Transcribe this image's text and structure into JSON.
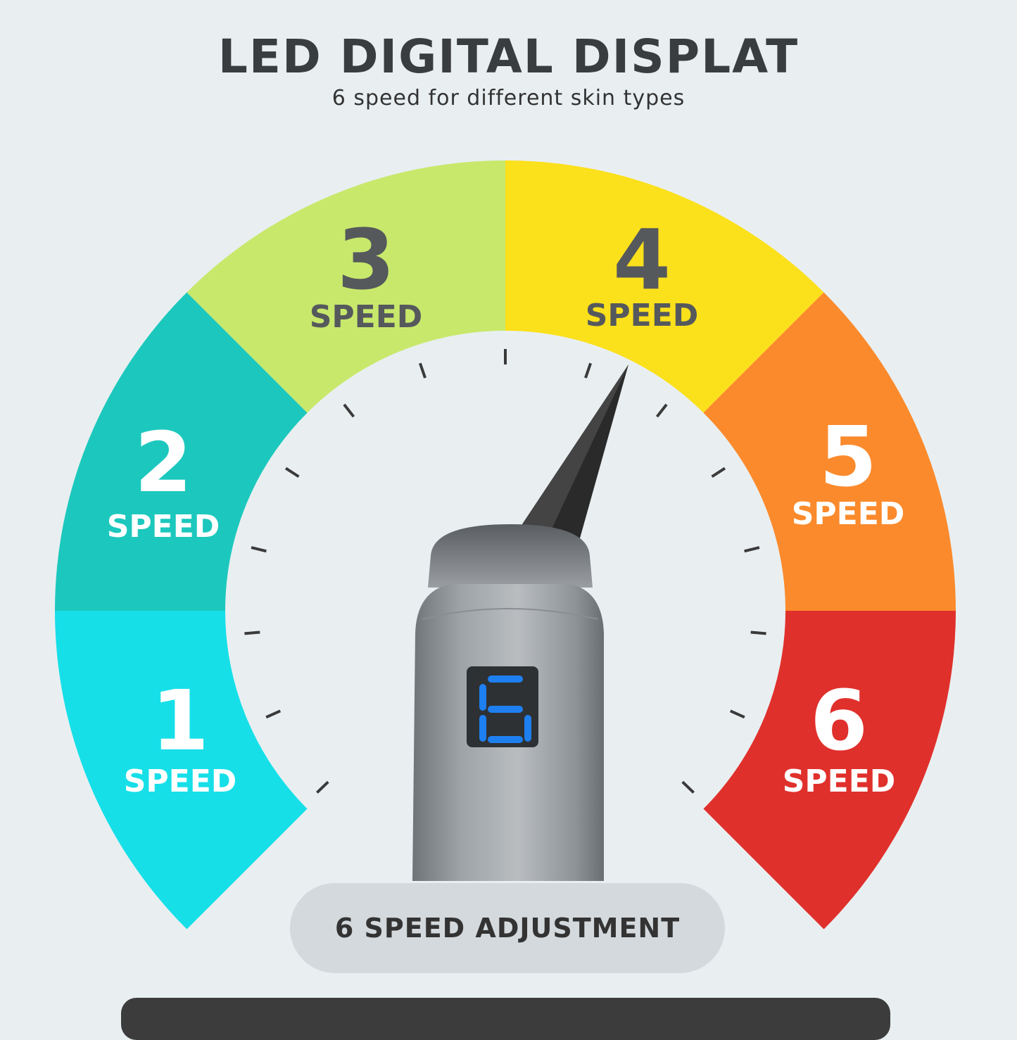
{
  "header": {
    "title": "LED DIGITAL DISPLAT",
    "subtitle": "6 speed for different skin types"
  },
  "gauge": {
    "segments": [
      {
        "number": "1",
        "label": "SPEED",
        "color": "#16dfe8",
        "text_color": "#ffffff"
      },
      {
        "number": "2",
        "label": "SPEED",
        "color": "#1cc8bd",
        "text_color": "#ffffff"
      },
      {
        "number": "3",
        "label": "SPEED",
        "color": "#c8e86c",
        "text_color": "#55595c"
      },
      {
        "number": "4",
        "label": "SPEED",
        "color": "#fbe01c",
        "text_color": "#55595c"
      },
      {
        "number": "5",
        "label": "SPEED",
        "color": "#fb8a2c",
        "text_color": "#ffffff"
      },
      {
        "number": "6",
        "label": "SPEED",
        "color": "#e0302c",
        "text_color": "#ffffff"
      }
    ],
    "needle_points_to_speed": 4
  },
  "device": {
    "display_digit": "6",
    "display_color": "#1e7ff0"
  },
  "footer": {
    "badge": "6 SPEED ADJUSTMENT"
  }
}
